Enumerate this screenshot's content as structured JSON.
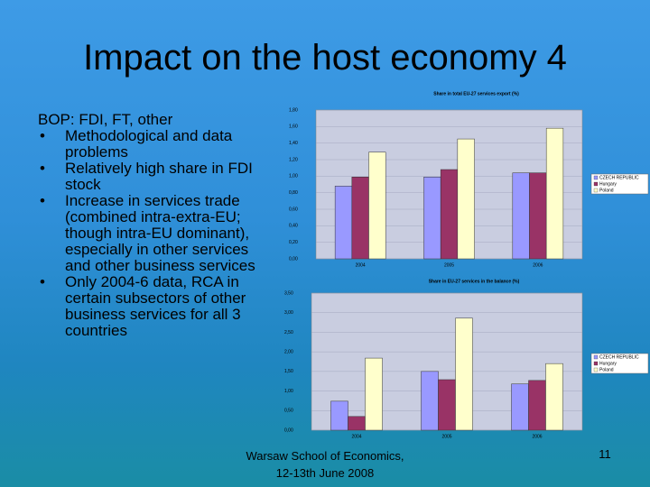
{
  "slide": {
    "title": "Impact on the host economy 4",
    "heading": "BOP: FDI, FT, other",
    "bullets": [
      "Methodological and data problems",
      "Relatively high share in FDI stock",
      "Increase in services trade (combined intra-extra-EU; though intra-EU dominant), especially in other services and other business services",
      "Only 2004-6 data, RCA in certain subsectors of other business services for all 3 countries"
    ],
    "footer": [
      "Warsaw School of Economics,",
      "12-13th June 2008"
    ],
    "page": "11"
  },
  "chart_data": [
    {
      "type": "bar",
      "title": "Share in total EU-27 services export (%)",
      "categories": [
        "2004",
        "2005",
        "2006"
      ],
      "series": [
        {
          "name": "CZECH REPUBLIC",
          "color": "#9999ff",
          "values": [
            0.88,
            0.99,
            1.04
          ]
        },
        {
          "name": "Hungary",
          "color": "#993366",
          "values": [
            0.99,
            1.08,
            1.04
          ]
        },
        {
          "name": "Poland",
          "color": "#ffffcc",
          "values": [
            1.29,
            1.45,
            1.58
          ]
        }
      ],
      "ylim": [
        0,
        1.8
      ],
      "yticks": [
        {
          "value": 0,
          "label": "0,00"
        },
        {
          "value": 0.2,
          "label": "0,20"
        },
        {
          "value": 0.4,
          "label": "0,40"
        },
        {
          "value": 0.6,
          "label": "0,60"
        },
        {
          "value": 0.8,
          "label": "0,80"
        },
        {
          "value": 1.0,
          "label": "1,00"
        },
        {
          "value": 1.2,
          "label": "1,20"
        },
        {
          "value": 1.4,
          "label": "1,40"
        },
        {
          "value": 1.6,
          "label": "1,60"
        },
        {
          "value": 1.8,
          "label": "1,80"
        }
      ],
      "legend": "right"
    },
    {
      "type": "bar",
      "title": "Share in EU-27 services in the balance (%)",
      "categories": [
        "2004",
        "2005",
        "2006"
      ],
      "series": [
        {
          "name": "CZECH REPUBLIC",
          "color": "#9999ff",
          "values": [
            0.74,
            1.5,
            1.18
          ]
        },
        {
          "name": "Hungary",
          "color": "#993366",
          "values": [
            0.35,
            1.29,
            1.27
          ]
        },
        {
          "name": "Poland",
          "color": "#ffffcc",
          "values": [
            1.84,
            2.86,
            1.7
          ]
        }
      ],
      "ylim": [
        0,
        3.5
      ],
      "yticks": [
        {
          "value": 0,
          "label": "0,00"
        },
        {
          "value": 0.5,
          "label": "0,50"
        },
        {
          "value": 1.0,
          "label": "1,00"
        },
        {
          "value": 1.5,
          "label": "1,50"
        },
        {
          "value": 2.0,
          "label": "2,00"
        },
        {
          "value": 2.5,
          "label": "2,50"
        },
        {
          "value": 3.0,
          "label": "3,00"
        },
        {
          "value": 3.5,
          "label": "3,50"
        }
      ],
      "legend": "right"
    }
  ]
}
